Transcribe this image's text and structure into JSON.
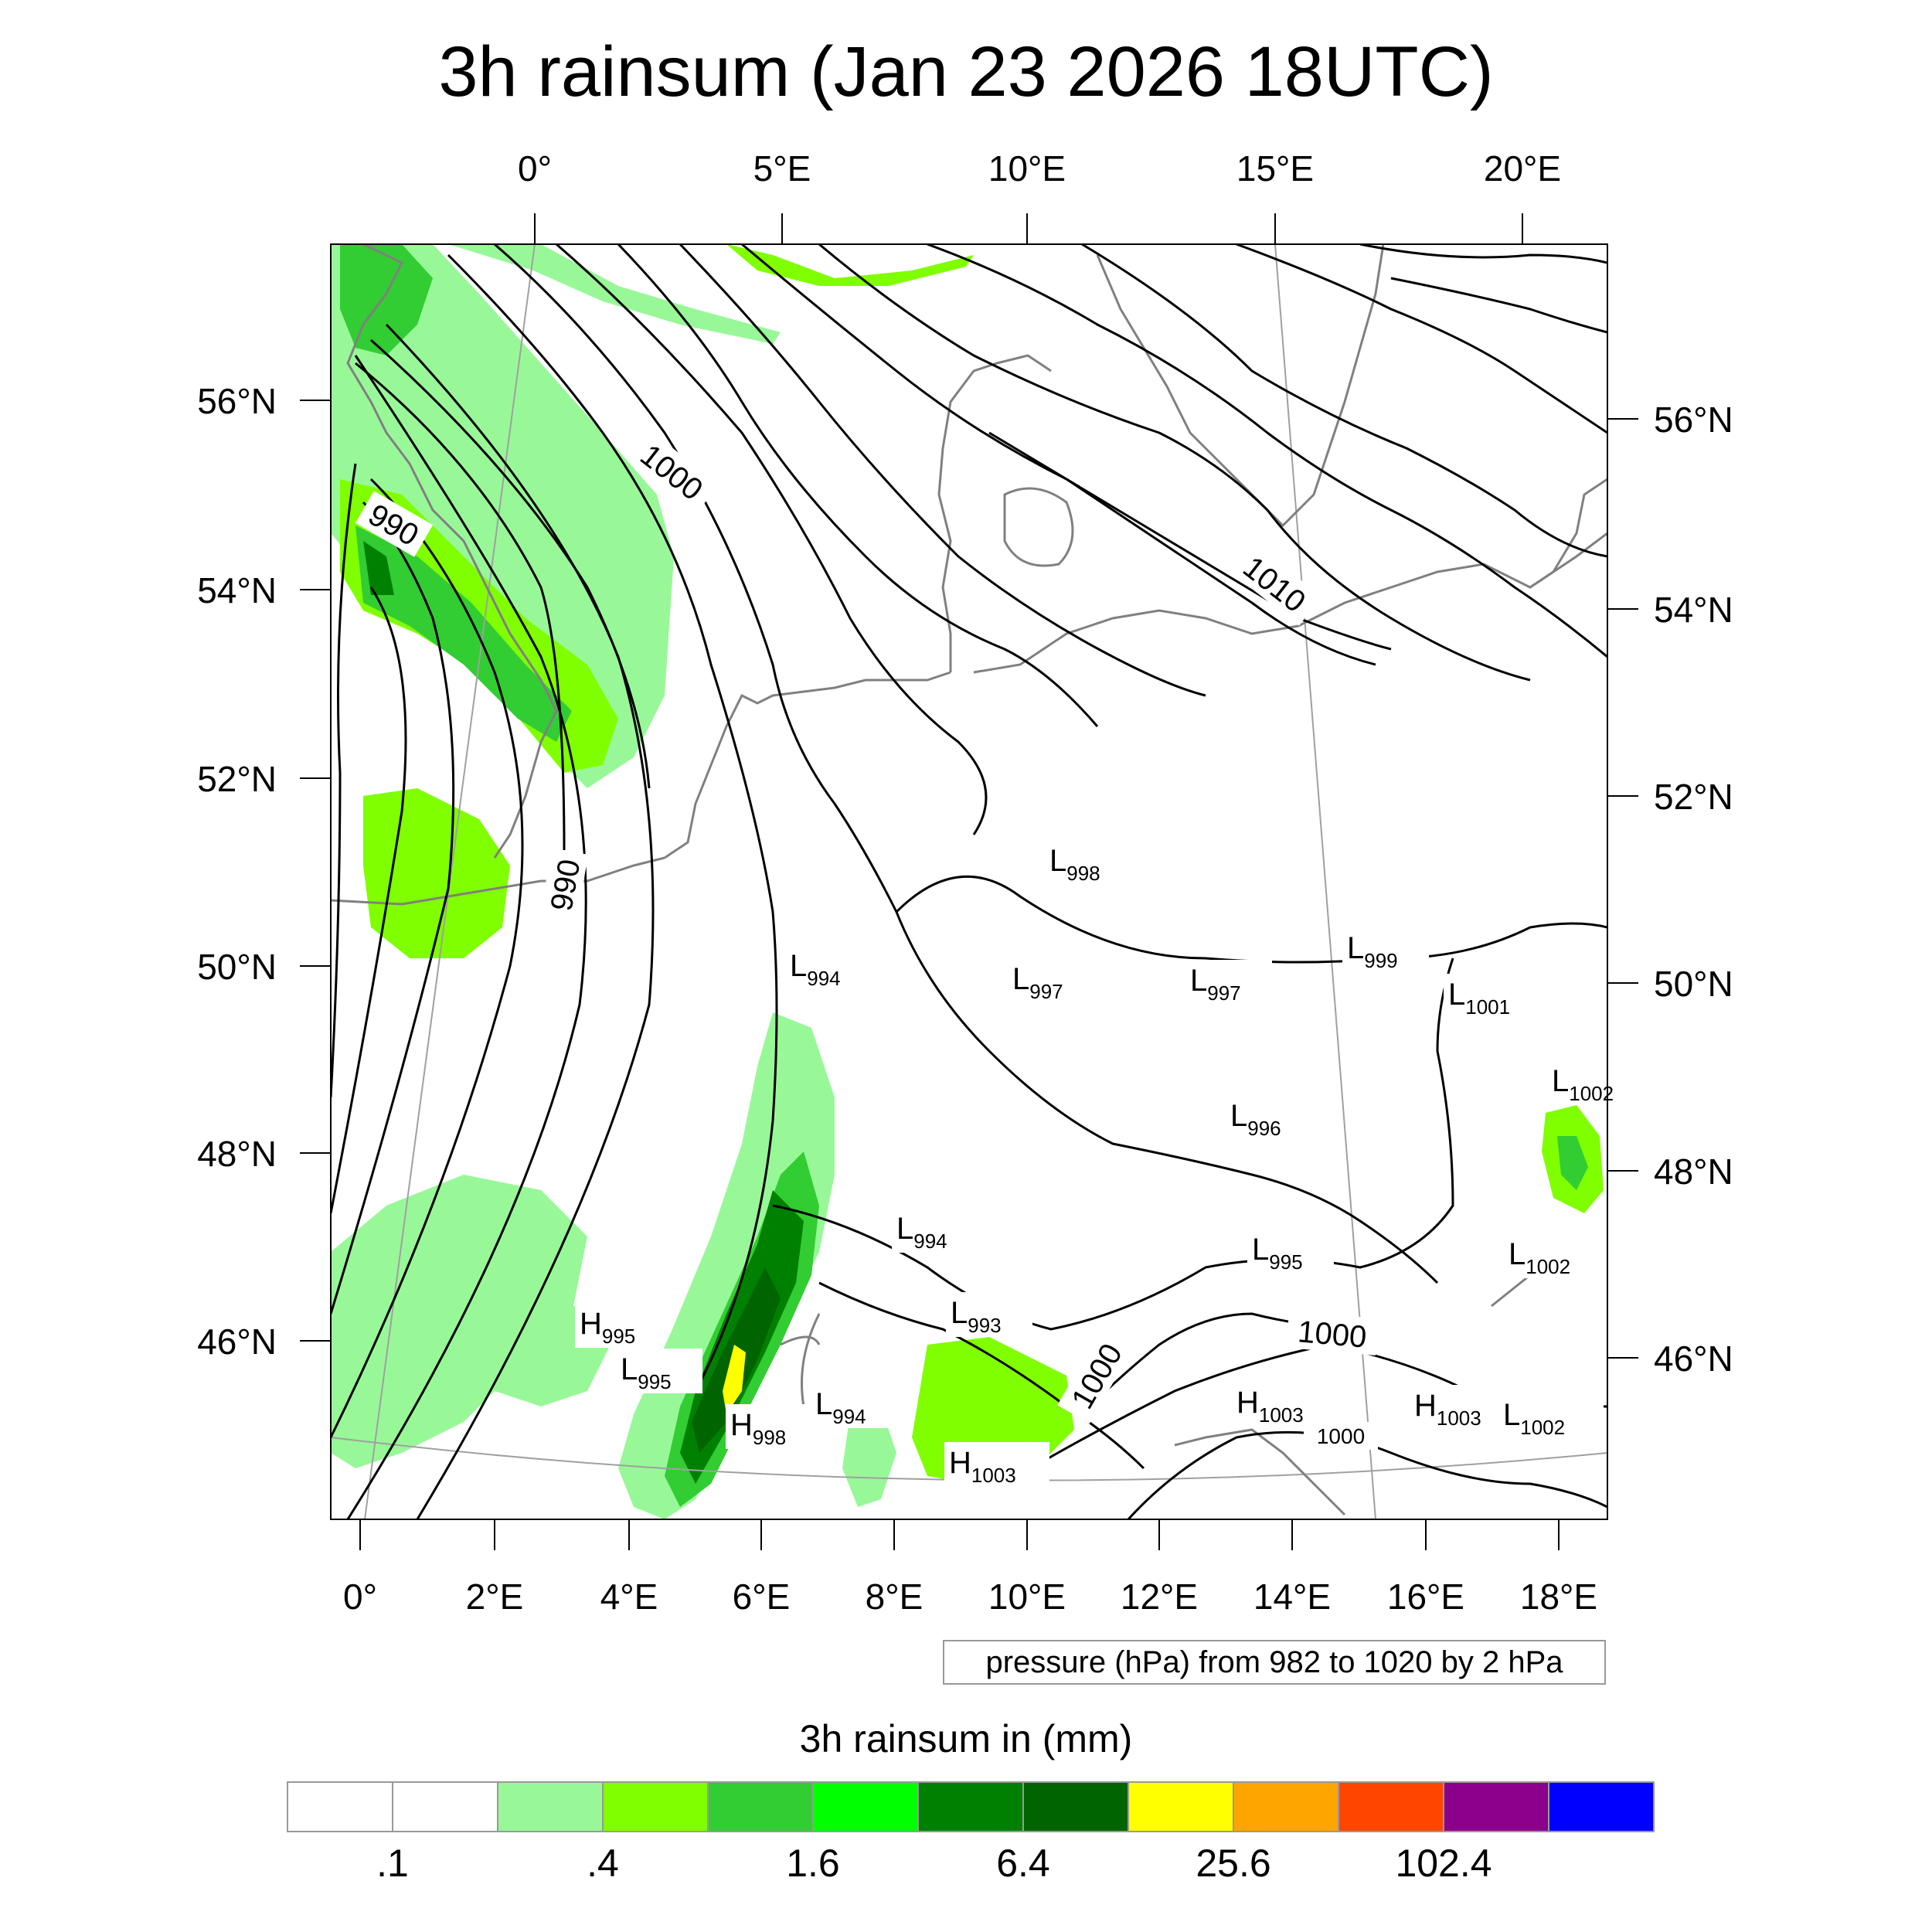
{
  "title": "3h rainsum (Jan 23 2026 18UTC)",
  "top_lon_labels": [
    "0°",
    "5°E",
    "10°E",
    "15°E",
    "20°E"
  ],
  "bottom_lon_labels": [
    "0°",
    "2°E",
    "4°E",
    "6°E",
    "8°E",
    "10°E",
    "12°E",
    "14°E",
    "16°E",
    "18°E"
  ],
  "left_lat_labels": [
    "56°N",
    "54°N",
    "52°N",
    "50°N",
    "48°N",
    "46°N"
  ],
  "right_lat_labels": [
    "56°N",
    "54°N",
    "52°N",
    "50°N",
    "48°N",
    "46°N"
  ],
  "isobar_labels": [
    "990",
    "990",
    "1000",
    "1010",
    "1000",
    "1000",
    "1000"
  ],
  "pressure_centers": [
    {
      "type": "L",
      "value": "998"
    },
    {
      "type": "L",
      "value": "994"
    },
    {
      "type": "L",
      "value": "997"
    },
    {
      "type": "L",
      "value": "997"
    },
    {
      "type": "L",
      "value": "999"
    },
    {
      "type": "L",
      "value": "1001"
    },
    {
      "type": "L",
      "value": "1002"
    },
    {
      "type": "L",
      "value": "996"
    },
    {
      "type": "L",
      "value": "994"
    },
    {
      "type": "L",
      "value": "995"
    },
    {
      "type": "L",
      "value": "1002"
    },
    {
      "type": "H",
      "value": "995"
    },
    {
      "type": "L",
      "value": "995"
    },
    {
      "type": "L",
      "value": "993"
    },
    {
      "type": "L",
      "value": "994"
    },
    {
      "type": "H",
      "value": "998"
    },
    {
      "type": "H",
      "value": "1003"
    },
    {
      "type": "H",
      "value": "1003"
    },
    {
      "type": "H",
      "value": "1003"
    },
    {
      "type": "L",
      "value": "1002"
    }
  ],
  "contour_note": "pressure (hPa) from 982 to 1020 by 2 hPa",
  "colorbar": {
    "title": "3h rainsum in (mm)",
    "colors": [
      "#ffffff",
      "#ffffff",
      "#98f898",
      "#7fff00",
      "#32cd32",
      "#00ff00",
      "#008000",
      "#006400",
      "#ffff00",
      "#ffa500",
      "#ff4500",
      "#8b008b",
      "#0000ff"
    ],
    "tick_labels": [
      ".1",
      ".4",
      "1.6",
      "6.4",
      "25.6",
      "102.4"
    ]
  },
  "colors": {
    "isobar": "#000000",
    "coastline": "#808080",
    "graticule": "#a0a0a0"
  }
}
